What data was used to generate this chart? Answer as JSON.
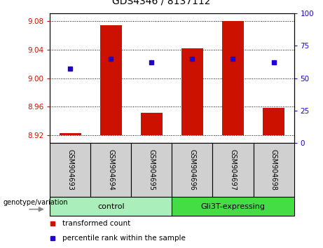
{
  "title": "GDS4346 / 8137112",
  "samples": [
    "GSM904693",
    "GSM904694",
    "GSM904695",
    "GSM904696",
    "GSM904697",
    "GSM904698"
  ],
  "bar_bottoms": [
    8.92,
    8.92,
    8.92,
    8.92,
    8.92,
    8.92
  ],
  "bar_tops": [
    8.923,
    9.074,
    8.952,
    9.042,
    9.08,
    8.958
  ],
  "percentile_values": [
    9.013,
    9.027,
    9.022,
    9.027,
    9.027,
    9.022
  ],
  "ylim_left": [
    8.91,
    9.09
  ],
  "yticks_left": [
    8.92,
    8.96,
    9.0,
    9.04,
    9.08
  ],
  "ylim_right": [
    0,
    100
  ],
  "yticks_right": [
    0,
    25,
    50,
    75,
    100
  ],
  "bar_color": "#cc1100",
  "dot_color": "#2200cc",
  "left_tick_color": "#cc1100",
  "right_tick_color": "#2200cc",
  "group_control_color": "#aaeebb",
  "group_gli3t_color": "#44dd44",
  "sample_bg_color": "#d0d0d0",
  "control_label": "control",
  "gli3t_label": "Gli3T-expressing",
  "legend_red_label": "transformed count",
  "legend_blue_label": "percentile rank within the sample",
  "genotype_label": "genotype/variation",
  "bar_width": 0.55
}
